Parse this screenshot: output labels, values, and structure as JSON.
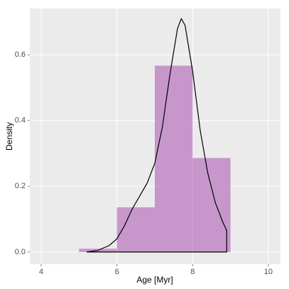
{
  "chart_data": {
    "type": "histogram",
    "x_label": "Age [Myr]",
    "y_label": "Density",
    "bins": [
      5,
      6,
      7,
      8,
      9
    ],
    "values": [
      0.01,
      0.136,
      0.567,
      0.286
    ],
    "color": "#c38ec9",
    "density": {
      "color": "#000000",
      "x": [
        5.2,
        5.5,
        5.8,
        6.0,
        6.2,
        6.4,
        6.6,
        6.8,
        7.0,
        7.2,
        7.4,
        7.6,
        7.7,
        7.8,
        8.0,
        8.2,
        8.4,
        8.6,
        8.8,
        8.9
      ],
      "y": [
        0.0,
        0.005,
        0.02,
        0.04,
        0.08,
        0.13,
        0.17,
        0.21,
        0.27,
        0.38,
        0.54,
        0.68,
        0.71,
        0.69,
        0.55,
        0.37,
        0.24,
        0.15,
        0.09,
        0.065
      ]
    },
    "xlim": [
      3.7,
      10.32
    ],
    "ylim": [
      -0.037,
      0.741
    ],
    "xticks": [
      4,
      6,
      8,
      10
    ],
    "yticks": [
      {
        "value": 0,
        "label": "0.0"
      },
      0.2,
      0.4,
      0.6
    ],
    "grid": true
  }
}
